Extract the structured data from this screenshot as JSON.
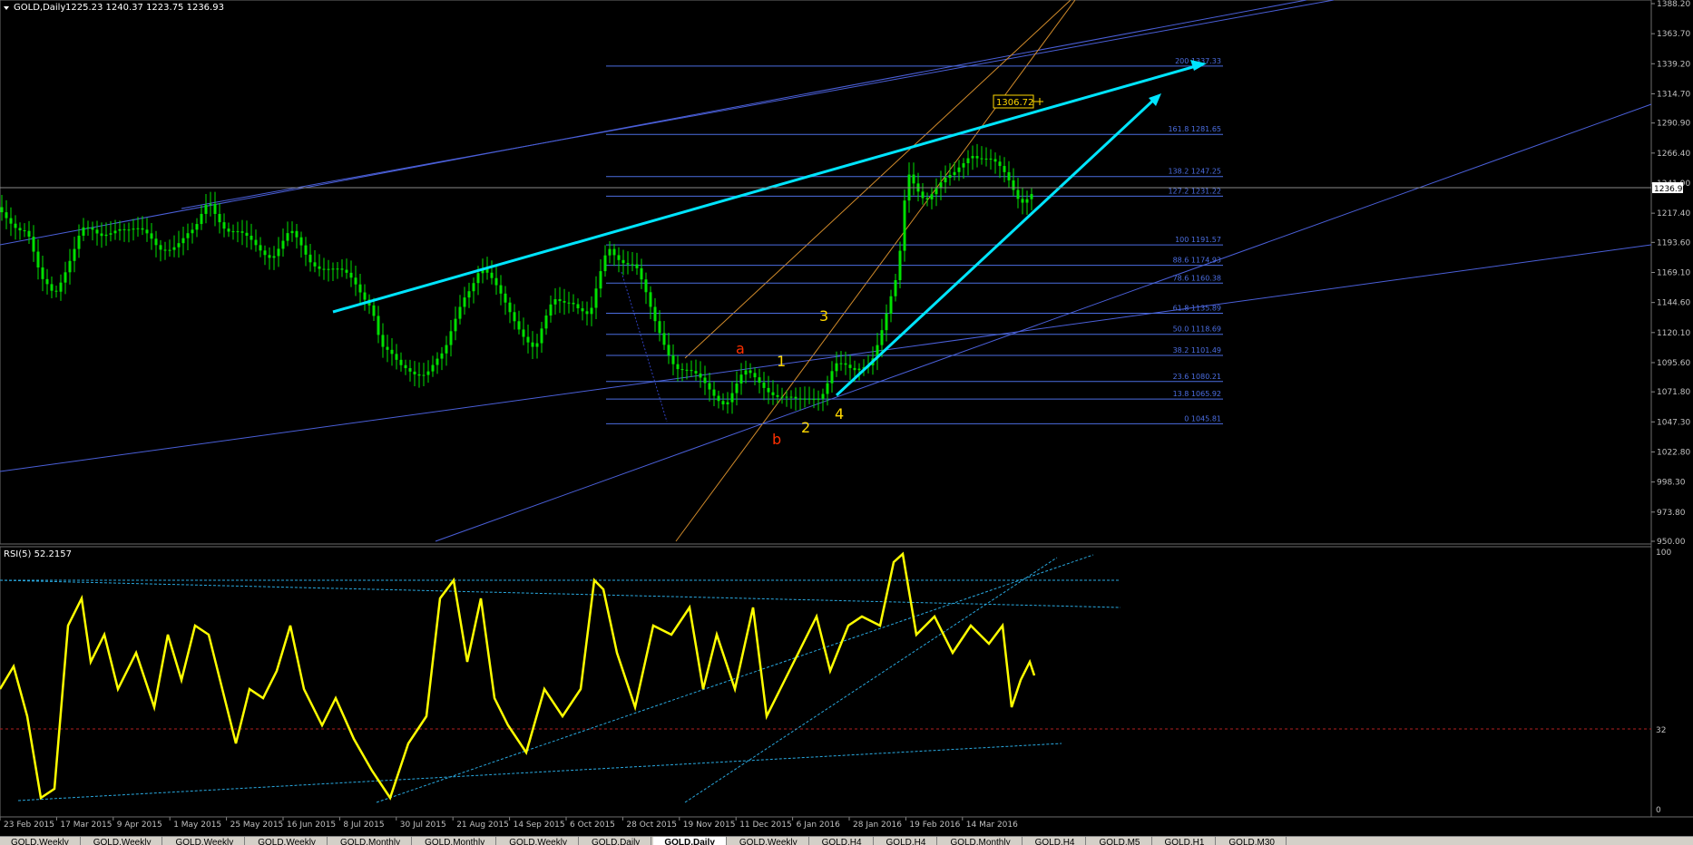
{
  "main_chart": {
    "symbol_label": "GOLD,Daily",
    "ohlc": "1225.23 1240.37 1223.75 1236.93",
    "current_price_label": "1236.93",
    "price_marker": "1306.72",
    "price_axis": [
      "1388.20",
      "1363.70",
      "1339.20",
      "1314.70",
      "1290.90",
      "1266.40",
      "1241.90",
      "1217.40",
      "1193.60",
      "1169.10",
      "1144.60",
      "1120.10",
      "1095.60",
      "1071.80",
      "1047.30",
      "1022.80",
      "998.30",
      "973.80",
      "950.00"
    ],
    "fib_levels": [
      {
        "pct": "200",
        "price": "1337.33"
      },
      {
        "pct": "161.8",
        "price": "1281.65"
      },
      {
        "pct": "138.2",
        "price": "1247.25"
      },
      {
        "pct": "127.2",
        "price": "1231.22"
      },
      {
        "pct": "100",
        "price": "1191.57"
      },
      {
        "pct": "88.6",
        "price": "1174.93"
      },
      {
        "pct": "78.6",
        "price": "1160.38"
      },
      {
        "pct": "61.8",
        "price": "1135.89"
      },
      {
        "pct": "50.0",
        "price": "1118.69"
      },
      {
        "pct": "38.2",
        "price": "1101.49"
      },
      {
        "pct": "23.6",
        "price": "1080.21"
      },
      {
        "pct": "13.8",
        "price": "1065.92"
      },
      {
        "pct": "0",
        "price": "1045.81"
      }
    ],
    "wave_labels": [
      {
        "text": "a",
        "color": "#ff3000"
      },
      {
        "text": "1",
        "color": "#ffd700"
      },
      {
        "text": "3",
        "color": "#ffd700"
      },
      {
        "text": "b",
        "color": "#ff3000"
      },
      {
        "text": "2",
        "color": "#ffd700"
      },
      {
        "text": "4",
        "color": "#ffd700"
      }
    ]
  },
  "rsi": {
    "label": "RSI(5) 52.2157",
    "axis": [
      "100",
      "32",
      "0"
    ]
  },
  "date_axis": [
    "23 Feb 2015",
    "17 Mar 2015",
    "9 Apr 2015",
    "1 May 2015",
    "25 May 2015",
    "16 Jun 2015",
    "8 Jul 2015",
    "30 Jul 2015",
    "21 Aug 2015",
    "14 Sep 2015",
    "6 Oct 2015",
    "28 Oct 2015",
    "19 Nov 2015",
    "11 Dec 2015",
    "6 Jan 2016",
    "28 Jan 2016",
    "19 Feb 2016",
    "14 Mar 2016"
  ],
  "tabs": [
    {
      "label": "GOLD,Weekly",
      "active": false
    },
    {
      "label": "GOLD,Weekly",
      "active": false
    },
    {
      "label": "GOLD,Weekly",
      "active": false
    },
    {
      "label": "GOLD,Weekly",
      "active": false
    },
    {
      "label": "GOLD,Monthly",
      "active": false
    },
    {
      "label": "GOLD,Monthly",
      "active": false
    },
    {
      "label": "GOLD,Weekly",
      "active": false
    },
    {
      "label": "GOLD,Daily",
      "active": false
    },
    {
      "label": "GOLD,Daily",
      "active": true
    },
    {
      "label": "GOLD,Weekly",
      "active": false
    },
    {
      "label": "GOLD,H4",
      "active": false
    },
    {
      "label": "GOLD,H4",
      "active": false
    },
    {
      "label": "GOLD,Monthly",
      "active": false
    },
    {
      "label": "GOLD,H4",
      "active": false
    },
    {
      "label": "GOLD,M5",
      "active": false
    },
    {
      "label": "GOLD,H1",
      "active": false
    },
    {
      "label": "GOLD,M30",
      "active": false
    }
  ],
  "colors": {
    "background": "#000000",
    "candles": "#00e000",
    "fib": "#4b6de0",
    "channel": "#4a5fd8",
    "trend": "#00e5ff",
    "orange_channel": "#d08a2a",
    "rsi_line": "#ffff00",
    "rsi_trend": "#29a9e0",
    "axis_text": "#c0c0c0"
  }
}
